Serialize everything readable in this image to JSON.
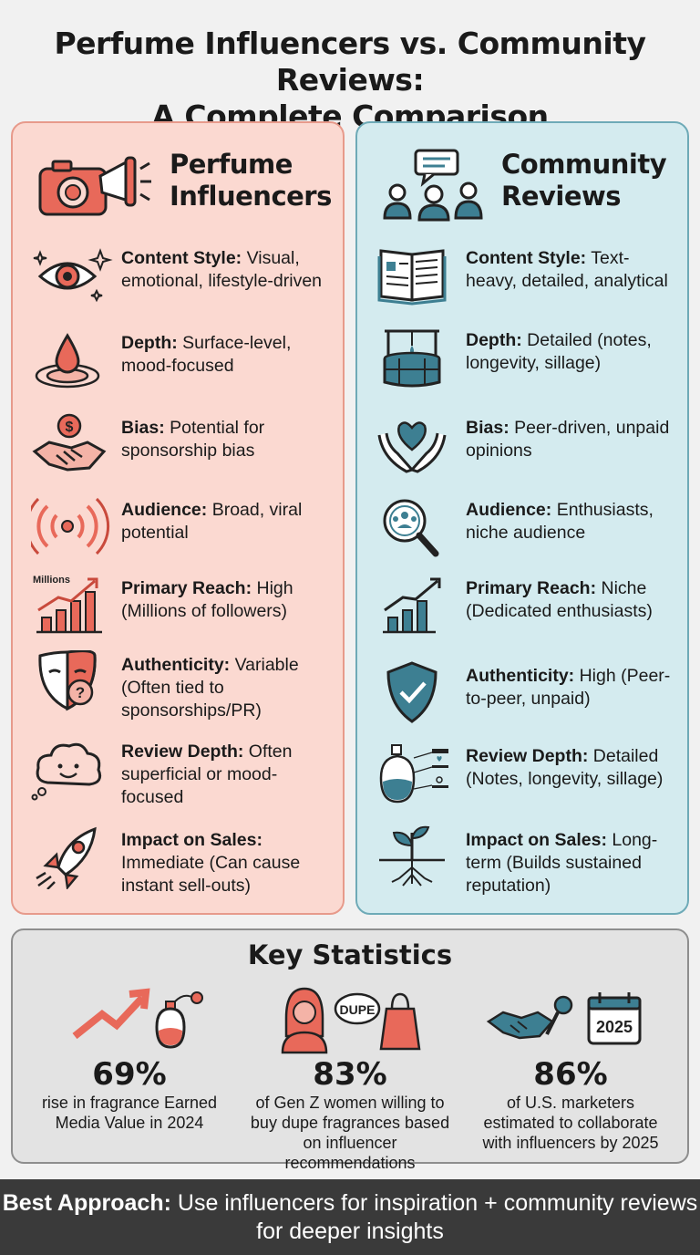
{
  "title": {
    "line1": "Perfume Influencers vs. Community Reviews:",
    "line2": "A Complete Comparison"
  },
  "colors": {
    "influencer_bg": "#fbd9d1",
    "influencer_accent": "#e8695a",
    "community_bg": "#d4ebef",
    "community_accent": "#3d7f92"
  },
  "influencers": {
    "title_line1": "Perfume",
    "title_line2": "Influencers",
    "header_icon": "camera-megaphone-icon",
    "rows": [
      {
        "icon": "eye-icon",
        "label": "Content Style:",
        "value": "Visual, emotional, lifestyle-driven"
      },
      {
        "icon": "droplet-icon",
        "label": "Depth:",
        "value": "Surface-level, mood-focused"
      },
      {
        "icon": "handshake-money-icon",
        "label": "Bias:",
        "value": "Potential for sponsorship bias"
      },
      {
        "icon": "broadcast-icon",
        "label": "Audience:",
        "value": "Broad, viral potential"
      },
      {
        "icon": "growth-chart-icon",
        "icon_text": "Millions",
        "label": "Primary Reach:",
        "value": "High (Millions of followers)"
      },
      {
        "icon": "mask-question-icon",
        "label": "Authenticity:",
        "value": "Variable (Often tied to sponsorships/PR)"
      },
      {
        "icon": "cloud-face-icon",
        "label": "Review Depth:",
        "value": "Often superficial or mood-focused"
      },
      {
        "icon": "rocket-icon",
        "label": "Impact on Sales:",
        "value": "Immediate (Can cause instant sell-outs)"
      }
    ]
  },
  "community": {
    "title_line1": "Community",
    "title_line2": "Reviews",
    "header_icon": "people-chat-icon",
    "rows": [
      {
        "icon": "open-book-icon",
        "label": "Content Style:",
        "value": "Text-heavy, detailed, analytical"
      },
      {
        "icon": "well-icon",
        "label": "Depth:",
        "value": "Detailed (notes, longevity, sillage)"
      },
      {
        "icon": "hands-heart-icon",
        "label": "Bias:",
        "value": "Peer-driven, unpaid opinions"
      },
      {
        "icon": "magnifier-people-icon",
        "label": "Audience:",
        "value": "Enthusiasts, niche audience"
      },
      {
        "icon": "small-growth-chart-icon",
        "label": "Primary Reach:",
        "value": "Niche (Dedicated enthusiasts)"
      },
      {
        "icon": "shield-check-icon",
        "label": "Authenticity:",
        "value": "High (Peer-to-peer, unpaid)"
      },
      {
        "icon": "perfume-notes-icon",
        "label": "Review Depth:",
        "value": "Detailed (Notes, longevity, sillage)"
      },
      {
        "icon": "sprout-roots-icon",
        "label": "Impact on Sales:",
        "value": "Long-term (Builds sustained reputation)"
      }
    ]
  },
  "stats": {
    "title": "Key Statistics",
    "items": [
      {
        "icon": "trend-perfume-icon",
        "value": "69%",
        "desc": "rise in fragrance Earned Media Value in 2024"
      },
      {
        "icon": "woman-dupe-bag-icon",
        "badge": "DUPE",
        "value": "83%",
        "desc": "of Gen Z women willing to buy dupe fragrances based on influencer recommendations"
      },
      {
        "icon": "handshake-mic-calendar-icon",
        "badge": "2025",
        "value": "86%",
        "desc": "of U.S. marketers estimated to collaborate with influencers by 2025"
      }
    ]
  },
  "footer": {
    "label": "Best Approach:",
    "text": "Use influencers for inspiration + community reviews for deeper insights"
  }
}
